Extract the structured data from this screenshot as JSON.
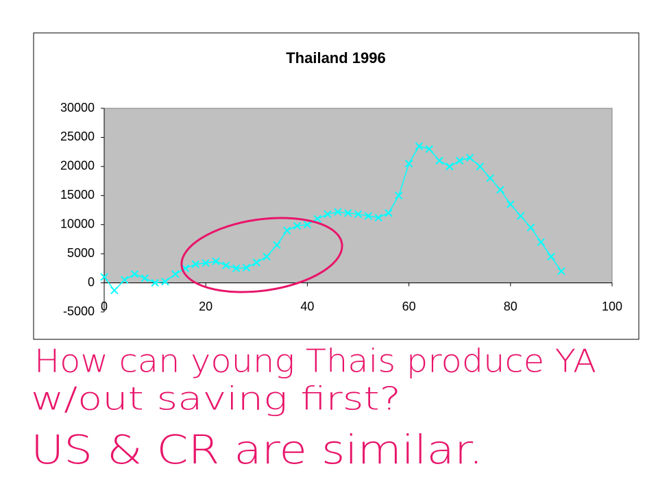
{
  "chart_data": {
    "type": "line",
    "title": "Thailand 1996",
    "x": [
      0,
      2,
      4,
      6,
      8,
      10,
      12,
      14,
      16,
      18,
      20,
      22,
      24,
      26,
      28,
      30,
      32,
      34,
      36,
      38,
      40,
      42,
      44,
      46,
      48,
      50,
      52,
      54,
      56,
      58,
      60,
      62,
      64,
      66,
      68,
      70,
      72,
      74,
      76,
      78,
      80,
      82,
      84,
      86,
      88,
      90
    ],
    "series": [
      {
        "color": "#00ffff",
        "values": [
          1000,
          -1300,
          500,
          1500,
          800,
          0,
          200,
          1500,
          2500,
          3200,
          3400,
          3700,
          3000,
          2500,
          2600,
          3500,
          4500,
          6500,
          9000,
          9800,
          10000,
          11000,
          11800,
          12200,
          12000,
          11800,
          11500,
          11200,
          12000,
          15000,
          20500,
          23500,
          23000,
          21000,
          20000,
          21000,
          21500,
          20000,
          18000,
          16000,
          13500,
          11500,
          9500,
          7000,
          4500,
          2000
        ]
      }
    ],
    "xlim": [
      0,
      100
    ],
    "xticks": [
      0,
      20,
      40,
      60,
      80,
      100
    ],
    "ylim": [
      -5000,
      30000
    ],
    "yticks": [
      -5000,
      0,
      5000,
      10000,
      15000,
      20000,
      25000,
      30000
    ],
    "plot_background": "#c0c0c0"
  },
  "annotations": [
    "How can young Thais produce YA",
    "w/out saving first?",
    "US & CR are similar."
  ]
}
